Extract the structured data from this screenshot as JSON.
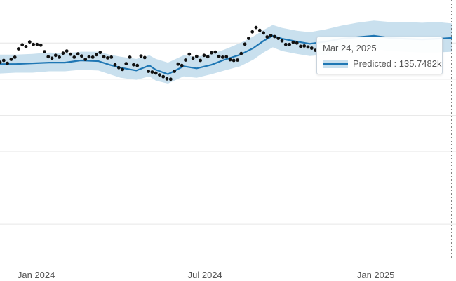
{
  "chart_data": {
    "type": "line",
    "title": "",
    "xlabel": "",
    "ylabel": "",
    "x_ticks": [
      {
        "date": "2024-01-01",
        "label": "Jan 2024"
      },
      {
        "date": "2024-07-01",
        "label": "Jul 2024"
      },
      {
        "date": "2025-01-01",
        "label": "Jan 2025"
      }
    ],
    "xlim": [
      "2023-11-23",
      "2025-03-24"
    ],
    "ylim": [
      107000,
      139000
    ],
    "grid": true,
    "colors": {
      "predicted_line": "#1f77b4",
      "interval_band": "#c9e0ee",
      "actual_points": "#111111",
      "grid": "#e6e6e6",
      "hover_line": "#333333"
    },
    "series": [
      {
        "type": "line",
        "x": [
          "2023-11-23",
          "2023-12-10",
          "2023-12-28",
          "2024-01-15",
          "2024-02-01",
          "2024-02-18",
          "2024-03-08",
          "2024-03-20",
          "2024-04-01",
          "2024-04-18",
          "2024-05-02",
          "2024-05-09",
          "2024-05-22",
          "2024-06-08",
          "2024-06-22",
          "2024-07-08",
          "2024-07-22",
          "2024-08-08",
          "2024-08-22",
          "2024-09-02",
          "2024-09-12",
          "2024-09-22",
          "2024-10-08",
          "2024-10-22",
          "2024-11-08",
          "2024-11-25",
          "2024-12-12",
          "2024-12-30",
          "2025-01-16",
          "2025-02-02",
          "2025-02-20",
          "2025-03-08",
          "2025-03-24"
        ],
        "y": [
          132100,
          132100,
          132200,
          132300,
          132300,
          132600,
          132500,
          132000,
          131600,
          131200,
          131900,
          131300,
          130700,
          131800,
          131500,
          132000,
          132700,
          133400,
          134300,
          135300,
          136000,
          135600,
          135200,
          134900,
          135200,
          135600,
          135800,
          136000,
          135700,
          135600,
          135500,
          135600,
          135700
        ]
      },
      {
        "type": "band",
        "x": [
          "2023-11-23",
          "2023-12-10",
          "2023-12-28",
          "2024-01-15",
          "2024-02-01",
          "2024-02-18",
          "2024-03-08",
          "2024-03-20",
          "2024-04-01",
          "2024-04-18",
          "2024-05-02",
          "2024-05-09",
          "2024-05-22",
          "2024-06-08",
          "2024-06-22",
          "2024-07-08",
          "2024-07-22",
          "2024-08-08",
          "2024-08-22",
          "2024-09-02",
          "2024-09-12",
          "2024-09-22",
          "2024-10-08",
          "2024-10-22",
          "2024-11-08",
          "2024-11-25",
          "2024-12-12",
          "2024-12-30",
          "2025-01-16",
          "2025-02-02",
          "2025-02-20",
          "2025-03-08",
          "2025-03-24"
        ],
        "lower": [
          130800,
          130900,
          130900,
          131100,
          131100,
          131300,
          131200,
          130700,
          130200,
          129900,
          130400,
          129800,
          129400,
          130400,
          130200,
          130700,
          131200,
          131800,
          132700,
          133700,
          134400,
          133900,
          133500,
          133200,
          133400,
          133800,
          134000,
          134200,
          133900,
          133800,
          133700,
          133700,
          133800
        ],
        "upper": [
          133400,
          133400,
          133500,
          133700,
          133600,
          133800,
          133800,
          133400,
          133100,
          132800,
          133300,
          132800,
          132300,
          133300,
          133100,
          133500,
          134100,
          135000,
          135900,
          136800,
          137500,
          137100,
          136700,
          136500,
          136900,
          137400,
          137800,
          138100,
          137900,
          137900,
          137800,
          137900,
          137700
        ]
      },
      {
        "type": "scatter",
        "x": [
          "2023-11-23",
          "2023-11-27",
          "2023-12-01",
          "2023-12-05",
          "2023-12-09",
          "2023-12-13",
          "2023-12-17",
          "2023-12-21",
          "2023-12-25",
          "2023-12-29",
          "2024-01-02",
          "2024-01-06",
          "2024-01-10",
          "2024-01-14",
          "2024-01-18",
          "2024-01-22",
          "2024-01-26",
          "2024-01-30",
          "2024-02-03",
          "2024-02-07",
          "2024-02-11",
          "2024-02-15",
          "2024-02-19",
          "2024-02-23",
          "2024-02-27",
          "2024-03-02",
          "2024-03-06",
          "2024-03-10",
          "2024-03-14",
          "2024-03-18",
          "2024-03-22",
          "2024-03-26",
          "2024-03-30",
          "2024-04-03",
          "2024-04-07",
          "2024-04-11",
          "2024-04-15",
          "2024-04-19",
          "2024-04-23",
          "2024-04-27",
          "2024-05-01",
          "2024-05-05",
          "2024-05-09",
          "2024-05-13",
          "2024-05-17",
          "2024-05-21",
          "2024-05-25",
          "2024-05-29",
          "2024-06-02",
          "2024-06-06",
          "2024-06-10",
          "2024-06-14",
          "2024-06-18",
          "2024-06-22",
          "2024-06-26",
          "2024-06-30",
          "2024-07-04",
          "2024-07-08",
          "2024-07-12",
          "2024-07-16",
          "2024-07-20",
          "2024-07-24",
          "2024-07-28",
          "2024-08-01",
          "2024-08-05",
          "2024-08-09",
          "2024-08-13",
          "2024-08-17",
          "2024-08-21",
          "2024-08-25",
          "2024-08-29",
          "2024-09-02",
          "2024-09-06",
          "2024-09-10",
          "2024-09-14",
          "2024-09-18",
          "2024-09-22",
          "2024-09-26",
          "2024-09-30",
          "2024-10-04",
          "2024-10-08",
          "2024-10-12",
          "2024-10-16",
          "2024-10-20",
          "2024-10-24",
          "2024-10-28"
        ],
        "y": [
          132350,
          132600,
          132200,
          132750,
          133050,
          134200,
          134750,
          134500,
          135150,
          134800,
          134800,
          134700,
          133800,
          133100,
          132900,
          133300,
          133050,
          133600,
          133900,
          133450,
          133050,
          133500,
          133200,
          132750,
          133100,
          133050,
          133400,
          133700,
          133100,
          132950,
          133050,
          132000,
          131600,
          131350,
          132150,
          133050,
          132000,
          131900,
          133200,
          133000,
          131100,
          131000,
          130850,
          130600,
          130350,
          130050,
          130000,
          131100,
          132100,
          131900,
          132650,
          133450,
          132900,
          133150,
          132600,
          133300,
          133100,
          133650,
          133750,
          133150,
          133050,
          133100,
          132700,
          132600,
          132650,
          133550,
          134850,
          135650,
          136550,
          137150,
          136750,
          136400,
          135850,
          136050,
          135900,
          135650,
          135300,
          134800,
          134800,
          135100,
          135000,
          134550,
          134600,
          134450,
          134300,
          134000
        ]
      }
    ],
    "tooltip": {
      "date": "Mar 24, 2025",
      "series_label": "Predicted",
      "value": "135.7482k",
      "text": "Predicted : 135.7482k"
    }
  }
}
